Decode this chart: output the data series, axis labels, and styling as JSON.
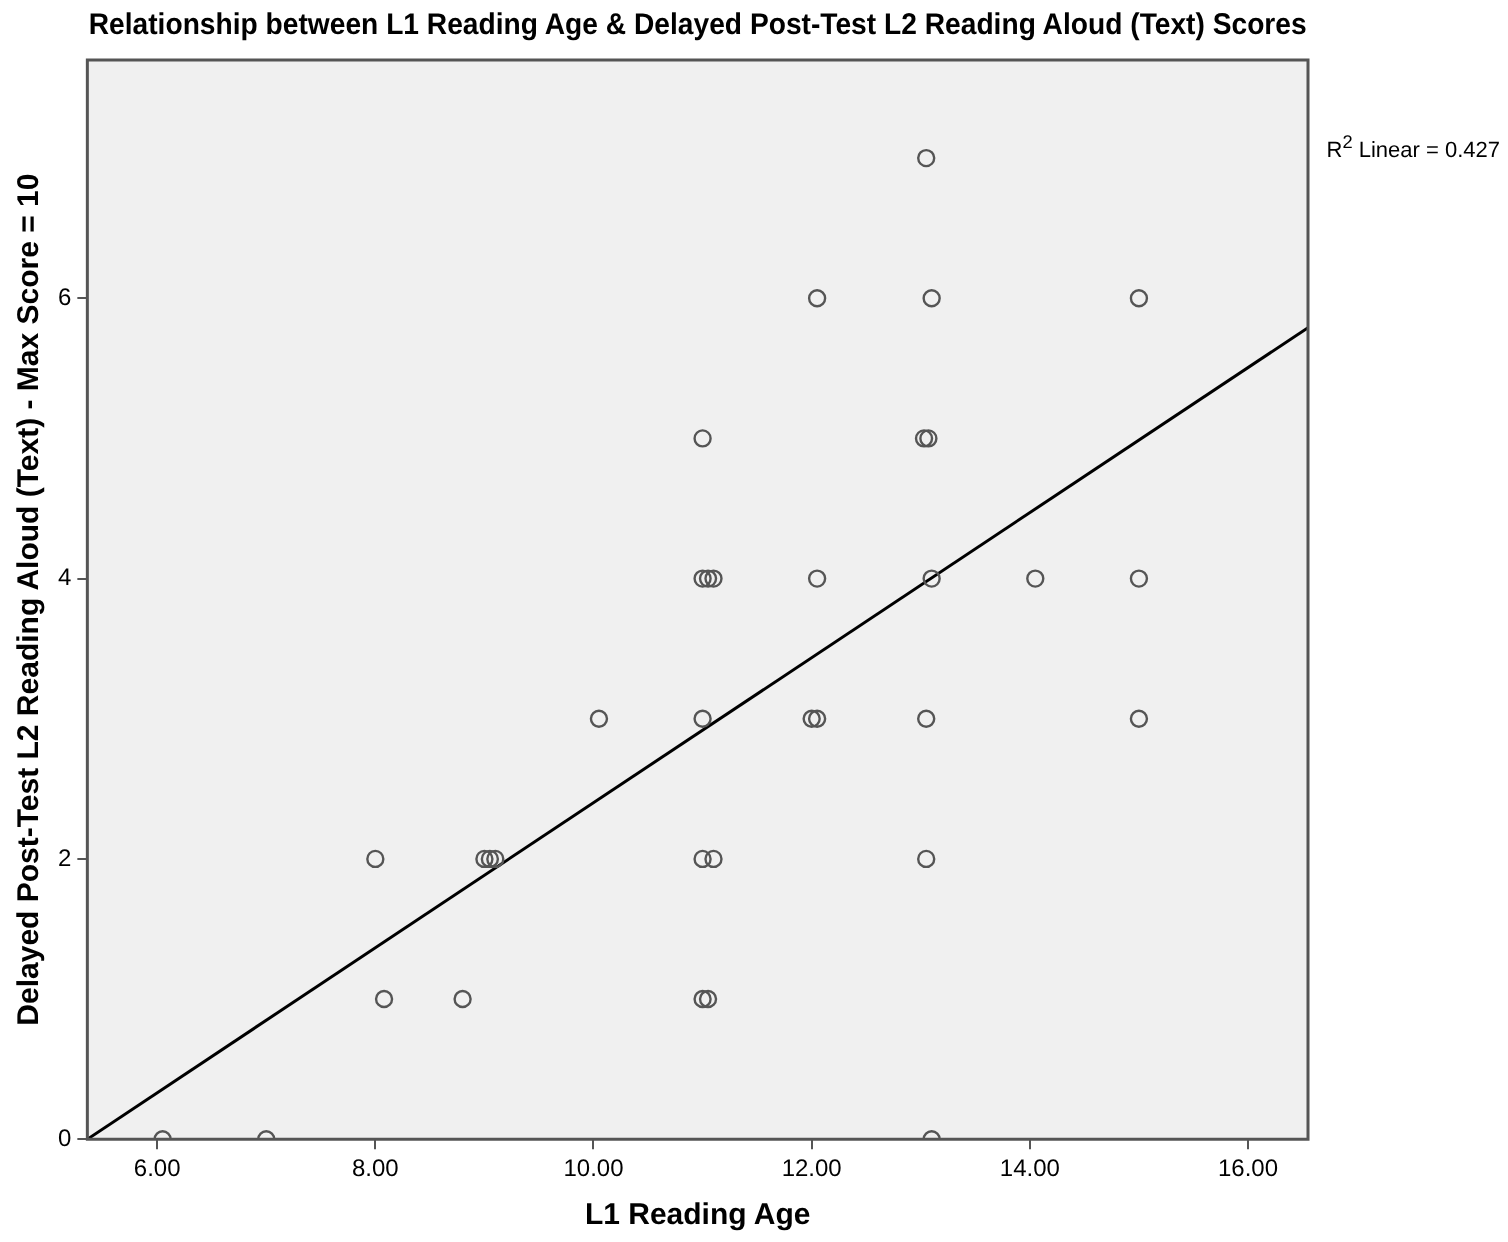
{
  "chart_data": {
    "type": "scatter",
    "title": "Relationship between L1 Reading Age & Delayed Post-Test L2 Reading Aloud (Text) Scores",
    "xlabel": "L1 Reading Age",
    "ylabel": "Delayed Post-Test L2 Reading Aloud (Text) - Max Score = 10",
    "annotations": [
      "R$^{2}$ Linear = 0.427"
    ],
    "xlim": [
      5.36,
      16.55
    ],
    "ylim": [
      0,
      7.7
    ],
    "xticks": [
      {
        "value": 6,
        "label": "6.00"
      },
      {
        "value": 8,
        "label": "8.00"
      },
      {
        "value": 10,
        "label": "10.00"
      },
      {
        "value": 12,
        "label": "12.00"
      },
      {
        "value": 14,
        "label": "14.00"
      },
      {
        "value": 16,
        "label": "16.00"
      }
    ],
    "yticks": [
      0,
      2,
      4,
      6
    ],
    "grid": false,
    "legend": false,
    "marker": "circle",
    "series": [
      {
        "color": "#555555",
        "x": [
          6.05,
          7.0,
          8.0,
          8.08,
          8.8,
          9.0,
          9.05,
          9.1,
          10.05,
          11.0,
          11.0,
          11.0,
          11.05,
          11.1,
          11.0,
          11.1,
          11.0,
          11.05,
          12.05,
          12.05,
          12.0,
          12.05,
          13.05,
          13.1,
          13.03,
          13.07,
          13.1,
          13.05,
          13.05,
          13.1,
          14.05,
          15.0,
          15.0,
          15.0
        ],
        "values": [
          0,
          0,
          2,
          1,
          1,
          2,
          2,
          2,
          3,
          3,
          5,
          4,
          4,
          4,
          2,
          2,
          1,
          1,
          6,
          4,
          3,
          3,
          7,
          6,
          5,
          5,
          4,
          3,
          2,
          0,
          4,
          6,
          4,
          3
        ]
      },
      {
        "type": "line",
        "color": "#000000",
        "marker": "none",
        "line_style": "solid",
        "x": [
          5.36,
          16.55
        ],
        "values": [
          0,
          5.79
        ]
      }
    ]
  }
}
